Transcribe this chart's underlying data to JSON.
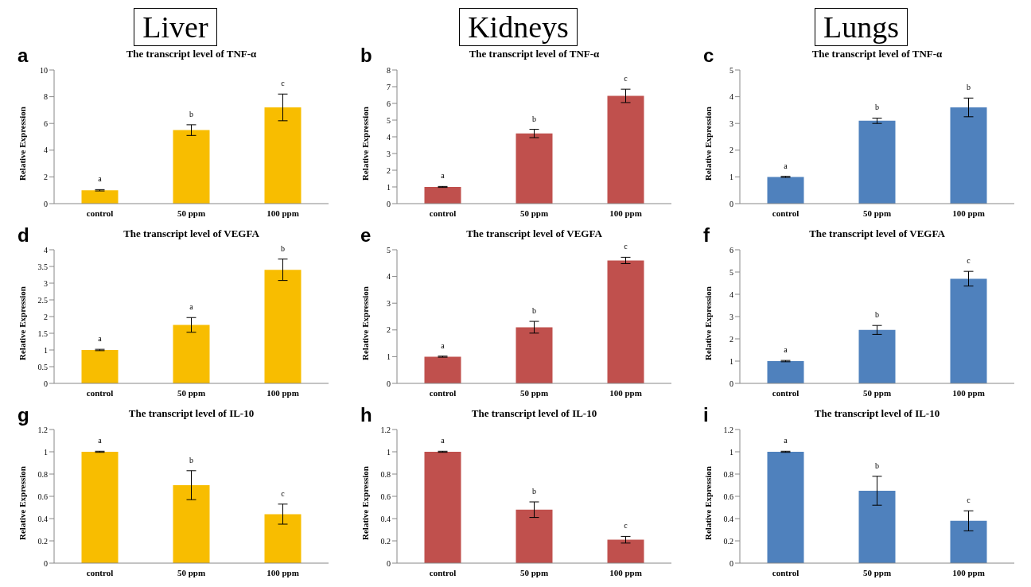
{
  "chart_data": [
    {
      "type": "bar",
      "title": "The transcript level of TNF-α",
      "ylabel": "Relative Expression",
      "categories": [
        "control",
        "50 ppm",
        "100 ppm"
      ],
      "values": [
        1,
        5.5,
        7.2
      ],
      "errors": [
        0.05,
        0.4,
        1.0
      ],
      "value_labels": [
        "a",
        "b",
        "c"
      ],
      "color": "#f8bd00",
      "ylim": [
        0,
        10
      ],
      "yticks": [
        0,
        2,
        4,
        6,
        8,
        10
      ],
      "grid": false,
      "legend": false,
      "annotations": [
        "a",
        "Liver"
      ]
    },
    {
      "type": "bar",
      "title": "The transcript level of TNF-α",
      "ylabel": "Relative Expression",
      "categories": [
        "control",
        "50 ppm",
        "100 ppm"
      ],
      "values": [
        1,
        4.2,
        6.45
      ],
      "errors": [
        0.03,
        0.25,
        0.4
      ],
      "value_labels": [
        "a",
        "b",
        "c"
      ],
      "color": "#c0504d",
      "ylim": [
        0,
        8
      ],
      "yticks": [
        0,
        1,
        2,
        3,
        4,
        5,
        6,
        7,
        8
      ],
      "grid": false,
      "legend": false,
      "annotations": [
        "b",
        "Kidneys"
      ]
    },
    {
      "type": "bar",
      "title": "The transcript level of TNF-α",
      "ylabel": "Relative Expression",
      "categories": [
        "control",
        "50 ppm",
        "100 ppm"
      ],
      "values": [
        1,
        3.1,
        3.6
      ],
      "errors": [
        0.02,
        0.1,
        0.35
      ],
      "value_labels": [
        "a",
        "b",
        "b"
      ],
      "color": "#4f81bd",
      "ylim": [
        0,
        5
      ],
      "yticks": [
        0,
        1,
        2,
        3,
        4,
        5
      ],
      "grid": false,
      "legend": false,
      "annotations": [
        "c",
        "Lungs"
      ]
    },
    {
      "type": "bar",
      "title": "The transcript level of VEGFA",
      "ylabel": "Relative Expression",
      "categories": [
        "control",
        "50 ppm",
        "100 ppm"
      ],
      "values": [
        1,
        1.75,
        3.4
      ],
      "errors": [
        0.02,
        0.22,
        0.32
      ],
      "value_labels": [
        "a",
        "a",
        "b"
      ],
      "color": "#f8bd00",
      "ylim": [
        0,
        4
      ],
      "yticks": [
        0,
        0.5,
        1,
        1.5,
        2,
        2.5,
        3,
        3.5,
        4
      ],
      "grid": false,
      "legend": false,
      "annotations": [
        "d"
      ]
    },
    {
      "type": "bar",
      "title": "The transcript level of VEGFA",
      "ylabel": "Relative Expression",
      "categories": [
        "control",
        "50 ppm",
        "100 ppm"
      ],
      "values": [
        1,
        2.1,
        4.6
      ],
      "errors": [
        0.02,
        0.22,
        0.12
      ],
      "value_labels": [
        "a",
        "b",
        "c"
      ],
      "color": "#c0504d",
      "ylim": [
        0,
        5
      ],
      "yticks": [
        0,
        1,
        2,
        3,
        4,
        5
      ],
      "grid": false,
      "legend": false,
      "annotations": [
        "e"
      ]
    },
    {
      "type": "bar",
      "title": "The transcript level of VEGFA",
      "ylabel": "Relative Expression",
      "categories": [
        "control",
        "50 ppm",
        "100 ppm"
      ],
      "values": [
        1,
        2.4,
        4.7
      ],
      "errors": [
        0.03,
        0.2,
        0.33
      ],
      "value_labels": [
        "a",
        "b",
        "c"
      ],
      "color": "#4f81bd",
      "ylim": [
        0,
        6
      ],
      "yticks": [
        0,
        1,
        2,
        3,
        4,
        5,
        6
      ],
      "grid": false,
      "legend": false,
      "annotations": [
        "f"
      ]
    },
    {
      "type": "bar",
      "title": "The transcript level of IL-10",
      "ylabel": "Relative Expression",
      "categories": [
        "control",
        "50 ppm",
        "100 ppm"
      ],
      "values": [
        1,
        0.7,
        0.44
      ],
      "errors": [
        0.005,
        0.13,
        0.09
      ],
      "value_labels": [
        "a",
        "b",
        "c"
      ],
      "color": "#f8bd00",
      "ylim": [
        0,
        1.2
      ],
      "yticks": [
        0,
        0.2,
        0.4,
        0.6,
        0.8,
        1,
        1.2
      ],
      "grid": false,
      "legend": false,
      "annotations": [
        "g"
      ]
    },
    {
      "type": "bar",
      "title": "The transcript level of IL-10",
      "ylabel": "Relative Expression",
      "categories": [
        "control",
        "50 ppm",
        "100 ppm"
      ],
      "values": [
        1,
        0.48,
        0.21
      ],
      "errors": [
        0.005,
        0.07,
        0.03
      ],
      "value_labels": [
        "a",
        "b",
        "c"
      ],
      "color": "#c0504d",
      "ylim": [
        0,
        1.2
      ],
      "yticks": [
        0,
        0.2,
        0.4,
        0.6,
        0.8,
        1,
        1.2
      ],
      "grid": false,
      "legend": false,
      "annotations": [
        "h"
      ]
    },
    {
      "type": "bar",
      "title": "The transcript level of IL-10",
      "ylabel": "Relative Expression",
      "categories": [
        "control",
        "50 ppm",
        "100 ppm"
      ],
      "values": [
        1,
        0.65,
        0.38
      ],
      "errors": [
        0.005,
        0.13,
        0.09
      ],
      "value_labels": [
        "a",
        "b",
        "c"
      ],
      "color": "#4f81bd",
      "ylim": [
        0,
        1.2
      ],
      "yticks": [
        0,
        0.2,
        0.4,
        0.6,
        0.8,
        1,
        1.2
      ],
      "grid": false,
      "legend": false,
      "annotations": [
        "i"
      ]
    }
  ]
}
